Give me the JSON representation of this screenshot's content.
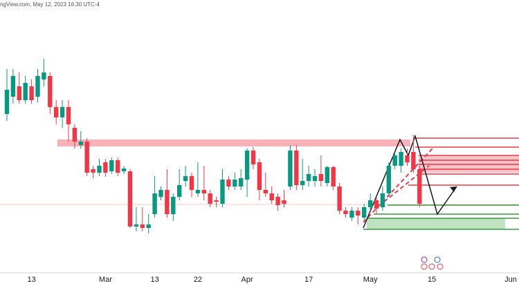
{
  "chart_data": {
    "type": "candlestick",
    "title": "ngView.com, May 12, 2023 16:30 UTC-4",
    "up_color": "#089981",
    "down_color": "#f23645",
    "ylim": [
      0,
      430
    ],
    "categories": [
      null,
      null,
      null,
      null,
      "13",
      null,
      null,
      null,
      null,
      null,
      null,
      null,
      null,
      null,
      null,
      null,
      "Mar",
      null,
      null,
      null,
      null,
      null,
      null,
      null,
      "13",
      null,
      null,
      null,
      null,
      null,
      null,
      "22",
      null,
      null,
      null,
      null,
      null,
      null,
      null,
      "Apr",
      null,
      null,
      null,
      null,
      null,
      null,
      null,
      null,
      null,
      "17",
      null,
      null,
      null,
      null,
      null,
      null,
      null,
      null,
      null,
      "May",
      null,
      null,
      null,
      null,
      null,
      null,
      null,
      null,
      null,
      "15",
      null,
      null,
      null,
      null,
      null,
      null,
      null,
      null,
      null,
      null,
      null,
      null,
      "Jun"
    ],
    "open": [
      265,
      290,
      305,
      285,
      305,
      290,
      315,
      320,
      275,
      260,
      275,
      245,
      220,
      225,
      185,
      180,
      195,
      182,
      198,
      182,
      182,
      102,
      105,
      100,
      120,
      145,
      155,
      120,
      145,
      168,
      175,
      150,
      155,
      150,
      140,
      135,
      170,
      160,
      160,
      170,
      212,
      195,
      155,
      150,
      145,
      140,
      160,
      212,
      162,
      168,
      168,
      178,
      165,
      188,
      160,
      125,
      115,
      125,
      115,
      130,
      140,
      130,
      150,
      190,
      190,
      205,
      210,
      185,
      null,
      null,
      null,
      null,
      null,
      null,
      null,
      null,
      null,
      null,
      null,
      null,
      null,
      null,
      null
    ],
    "high": [
      330,
      330,
      325,
      320,
      315,
      330,
      345,
      325,
      285,
      285,
      285,
      250,
      240,
      230,
      190,
      200,
      200,
      202,
      202,
      190,
      185,
      130,
      130,
      120,
      175,
      160,
      185,
      150,
      185,
      190,
      180,
      195,
      190,
      155,
      145,
      185,
      175,
      180,
      185,
      215,
      217,
      200,
      180,
      160,
      150,
      155,
      220,
      220,
      200,
      190,
      185,
      205,
      190,
      190,
      165,
      130,
      130,
      130,
      135,
      150,
      145,
      160,
      195,
      210,
      215,
      215,
      235,
      190,
      null,
      null,
      null,
      null,
      null,
      null,
      null,
      null,
      null,
      null,
      null,
      null,
      null,
      null,
      null
    ],
    "low": [
      255,
      280,
      280,
      280,
      280,
      282,
      305,
      265,
      250,
      245,
      225,
      215,
      215,
      175,
      172,
      175,
      174,
      178,
      175,
      178,
      100,
      95,
      95,
      92,
      115,
      140,
      115,
      110,
      140,
      160,
      145,
      145,
      140,
      130,
      130,
      130,
      155,
      155,
      155,
      145,
      185,
      140,
      145,
      135,
      125,
      130,
      155,
      155,
      155,
      160,
      160,
      160,
      160,
      155,
      120,
      115,
      110,
      105,
      110,
      125,
      120,
      125,
      145,
      185,
      180,
      190,
      180,
      130,
      null,
      null,
      null,
      null,
      null,
      null,
      null,
      null,
      null,
      null,
      null,
      null,
      null,
      null,
      null
    ],
    "close": [
      300,
      320,
      285,
      310,
      285,
      320,
      325,
      275,
      260,
      275,
      250,
      225,
      225,
      180,
      180,
      190,
      180,
      198,
      180,
      186,
      102,
      105,
      100,
      105,
      150,
      155,
      120,
      145,
      162,
      175,
      155,
      155,
      150,
      135,
      138,
      170,
      160,
      170,
      172,
      212,
      192,
      155,
      150,
      140,
      133,
      135,
      212,
      162,
      168,
      178,
      175,
      168,
      188,
      160,
      125,
      120,
      125,
      118,
      130,
      140,
      128,
      150,
      190,
      205,
      210,
      195,
      185,
      135,
      null,
      null,
      null,
      null,
      null,
      null,
      null,
      null,
      null,
      null,
      null,
      null,
      null,
      null,
      null
    ]
  }
}
